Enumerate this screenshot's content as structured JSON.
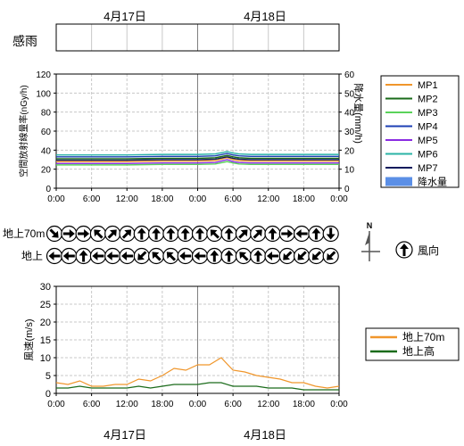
{
  "dates": {
    "top": [
      "4月17日",
      "4月18日"
    ],
    "bottom": [
      "4月17日",
      "4月18日"
    ]
  },
  "rain_sense_label": "感雨",
  "time_ticks": [
    "0:00",
    "6:00",
    "12:00",
    "18:00",
    "0:00",
    "6:00",
    "12:00",
    "18:00",
    "0:00"
  ],
  "colors": {
    "grid": "#c8c8c8",
    "divider": "#808080",
    "axis": "#000000",
    "precip": "#5b8fe6"
  },
  "chart_data": [
    {
      "type": "line",
      "name": "dose-rate",
      "ylabel": "空間放射線量率(nGy/h)",
      "y2label": "降水量(mm/h)",
      "ylim": [
        0,
        120
      ],
      "y2lim": [
        0,
        60
      ],
      "yticks": [
        "0",
        "20",
        "40",
        "60",
        "80",
        "100",
        "120"
      ],
      "y2ticks": [
        "0",
        "10",
        "20",
        "30",
        "40",
        "50",
        "60"
      ],
      "x_hours": [
        0,
        6,
        12,
        18,
        24,
        27,
        29,
        30,
        31,
        33,
        36,
        42,
        48
      ],
      "grid": true,
      "legend_position": "right",
      "series": [
        {
          "name": "MP1",
          "color": "#f0962b",
          "values": [
            28,
            28,
            28,
            28.5,
            28.5,
            29,
            32,
            30,
            29,
            28.5,
            28.5,
            28.5,
            28.5
          ]
        },
        {
          "name": "MP2",
          "color": "#1a6b1a",
          "values": [
            31,
            31,
            31,
            31.5,
            31.5,
            32,
            34.5,
            33,
            32,
            31.5,
            31.5,
            31.5,
            31.5
          ]
        },
        {
          "name": "MP3",
          "color": "#5ad25a",
          "values": [
            24.5,
            24.5,
            24.5,
            25,
            25,
            25.5,
            28,
            26.5,
            25.5,
            25,
            25,
            25,
            25
          ]
        },
        {
          "name": "MP4",
          "color": "#1c3fb5",
          "values": [
            33,
            33,
            33,
            33.5,
            33.5,
            34,
            36.5,
            35,
            34,
            33.5,
            33.5,
            33.5,
            33.5
          ]
        },
        {
          "name": "MP5",
          "color": "#8a2be2",
          "values": [
            26,
            26,
            26,
            26.5,
            26.5,
            27,
            30,
            28,
            27,
            26.5,
            26.5,
            26.5,
            26.5
          ]
        },
        {
          "name": "MP6",
          "color": "#2ab3a6",
          "values": [
            35,
            35,
            35,
            35.5,
            35.5,
            36,
            38.5,
            37,
            36,
            35.5,
            35.5,
            35.5,
            35.5
          ]
        },
        {
          "name": "MP7",
          "color": "#0b1a5c",
          "values": [
            29.5,
            29.5,
            29.5,
            30,
            30,
            30.5,
            33,
            31.5,
            30.5,
            30,
            30,
            30,
            30
          ]
        }
      ],
      "precip_legend": "降水量",
      "precip_values": []
    },
    {
      "type": "line",
      "name": "wind-speed",
      "ylabel": "風速(m/s)",
      "ylim": [
        0,
        30
      ],
      "yticks": [
        "0",
        "5",
        "10",
        "15",
        "20",
        "25",
        "30"
      ],
      "grid": true,
      "legend_position": "right",
      "x_hours": [
        0,
        2,
        4,
        6,
        8,
        10,
        12,
        14,
        16,
        18,
        20,
        22,
        24,
        26,
        28,
        30,
        32,
        34,
        36,
        38,
        40,
        42,
        44,
        46,
        48
      ],
      "series": [
        {
          "name": "地上70m",
          "color": "#f0962b",
          "values": [
            3,
            2.5,
            3.5,
            2,
            2,
            2.5,
            2.5,
            4,
            3.5,
            5,
            7,
            6.5,
            8,
            8,
            10,
            6.5,
            6,
            5,
            4.5,
            4,
            3,
            3,
            2,
            1.5,
            2
          ]
        },
        {
          "name": "地上高",
          "color": "#1a6b1a",
          "values": [
            1.5,
            1.5,
            2,
            1.5,
            1.5,
            1.5,
            1.5,
            2,
            1.5,
            2,
            2.5,
            2.5,
            2.5,
            3,
            3,
            2,
            2,
            2,
            1.5,
            1.5,
            1.5,
            1,
            1,
            1,
            1
          ]
        }
      ]
    }
  ],
  "wind_direction": {
    "row_labels": [
      "地上70m",
      "地上"
    ],
    "legend_label": "風向",
    "compass_label": "N",
    "row1_deg": [
      135,
      90,
      90,
      315,
      45,
      45,
      0,
      0,
      0,
      0,
      0,
      315,
      0,
      45,
      45,
      0,
      90,
      270,
      0,
      180
    ],
    "row2_deg": [
      270,
      270,
      0,
      270,
      270,
      270,
      225,
      315,
      315,
      270,
      270,
      0,
      0,
      315,
      0,
      270,
      225,
      225,
      225,
      225
    ]
  }
}
